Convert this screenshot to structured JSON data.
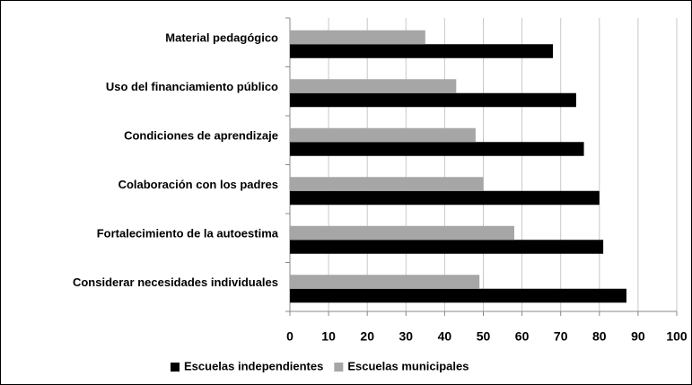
{
  "chart_data": {
    "type": "bar",
    "orientation": "horizontal",
    "categories": [
      "Material pedagógico",
      "Uso del financiamiento público",
      "Condiciones de aprendizaje",
      "Colaboración con los padres",
      "Fortalecimiento de la autoestima",
      "Considerar necesidades individuales"
    ],
    "series": [
      {
        "name": "Escuelas independientes",
        "color": "#000000",
        "values": [
          68,
          74,
          76,
          80,
          81,
          87
        ]
      },
      {
        "name": "Escuelas municipales",
        "color": "#a6a6a6",
        "values": [
          35,
          43,
          48,
          50,
          58,
          49
        ]
      }
    ],
    "xlim": [
      0,
      100
    ],
    "xticks": [
      0,
      10,
      20,
      30,
      40,
      50,
      60,
      70,
      80,
      90,
      100
    ],
    "grid": true,
    "legend": "bottom"
  }
}
